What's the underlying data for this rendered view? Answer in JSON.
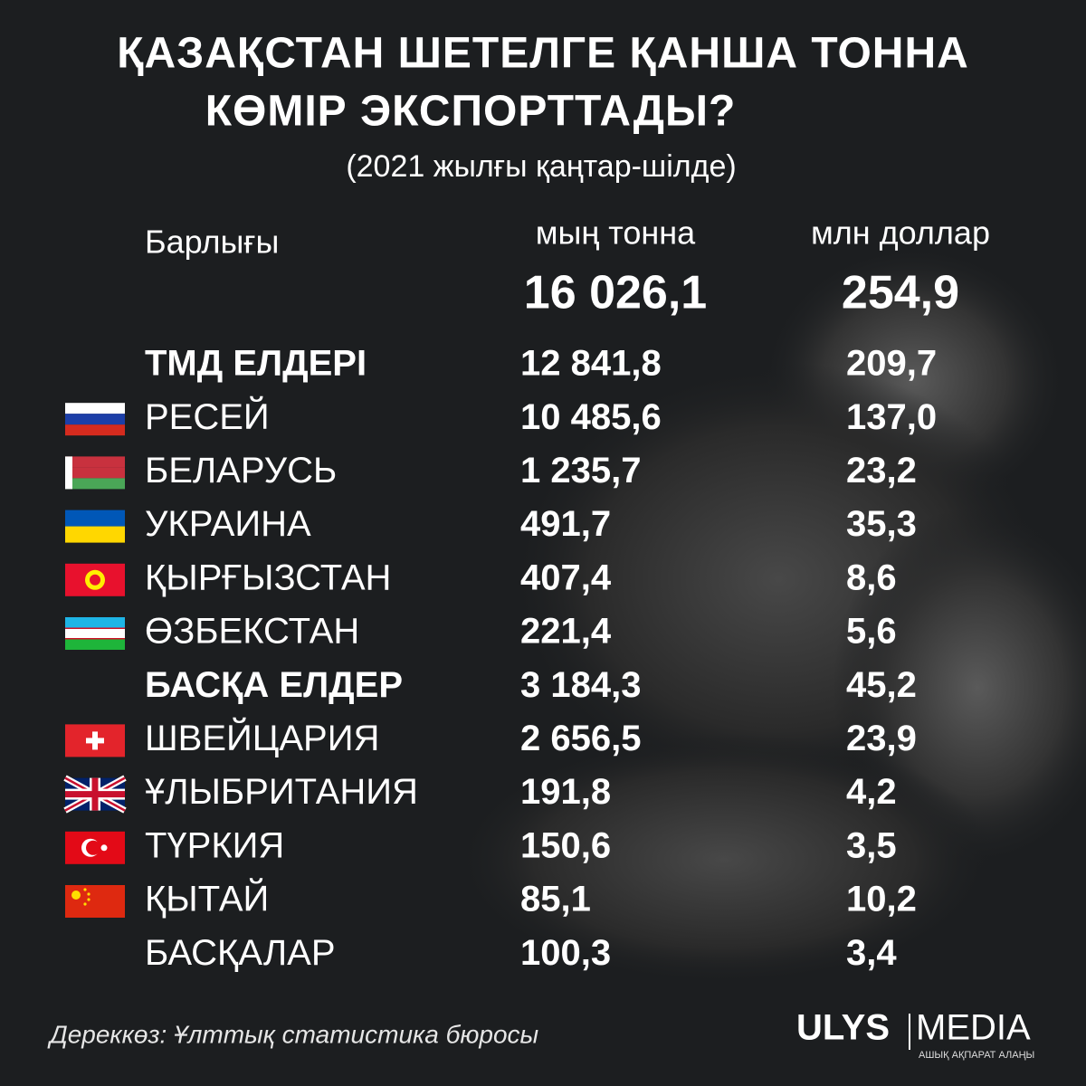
{
  "header": {
    "title_lines": [
      "ҚАЗАҚСТАН ШЕТЕЛГЕ ҚАНША ТОННА",
      "КӨМІР ЭКСПОРТТАДЫ?"
    ],
    "subtitle": "(2021 жылғы қаңтар-шілде)"
  },
  "table": {
    "total_label": "Барлығы",
    "columns": [
      "мың тонна",
      "млн доллар"
    ],
    "total": [
      "16 026,1",
      "254,9"
    ],
    "groups": [
      {
        "name": "ТМД ЕЛДЕРІ",
        "values": [
          "12 841,8",
          "209,7"
        ],
        "countries": [
          {
            "name": "РЕСЕЙ",
            "values": [
              "10 485,6",
              "137,0"
            ]
          },
          {
            "name": "БЕЛАРУСЬ",
            "values": [
              "1 235,7",
              "23,2"
            ]
          },
          {
            "name": "УКРАИНА",
            "values": [
              "491,7",
              "35,3"
            ]
          },
          {
            "name": "ҚЫРҒЫЗСТАН",
            "values": [
              "407,4",
              "8,6"
            ]
          },
          {
            "name": "ӨЗБЕКСТАН",
            "values": [
              "221,4",
              "5,6"
            ]
          }
        ]
      },
      {
        "name": "БАСҚА ЕЛДЕР",
        "values": [
          "3 184,3",
          "45,2"
        ],
        "countries": [
          {
            "name": "ШВЕЙЦАРИЯ",
            "values": [
              "2 656,5",
              "23,9"
            ]
          },
          {
            "name": "ҰЛЫБРИТАНИЯ",
            "values": [
              "191,8",
              "4,2"
            ]
          },
          {
            "name": "ТҮРКИЯ",
            "values": [
              "150,6",
              "3,5"
            ]
          },
          {
            "name": "ҚЫТАЙ",
            "values": [
              "85,1",
              "10,2"
            ]
          },
          {
            "name": "БАСҚАЛАР",
            "values": [
              "100,3",
              "3,4"
            ]
          }
        ]
      }
    ]
  },
  "footer": {
    "source": "Дереккөз: Ұлттық статистика бюросы",
    "logo_left": "ULYS",
    "logo_right": "MEDIA",
    "logo_tagline": "АШЫҚ АҚПАРАТ АЛАҢЫ"
  }
}
